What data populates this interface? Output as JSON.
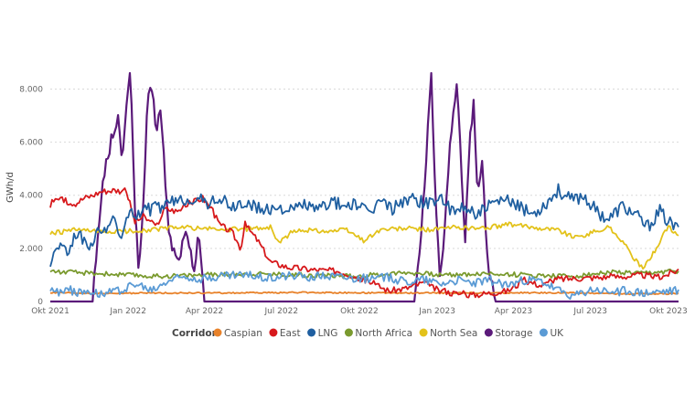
{
  "chart_data": {
    "type": "line",
    "title": "",
    "xlabel": "",
    "ylabel": "GWh/d",
    "ylim": [
      0,
      8600
    ],
    "yticks": [
      0,
      2000,
      4000,
      6000,
      8000
    ],
    "ytick_labels": [
      "0",
      "2.000",
      "4.000",
      "6.000",
      "8.000"
    ],
    "x_range_days": [
      0,
      742
    ],
    "xticks": [
      0,
      92,
      182,
      273,
      365,
      457,
      547,
      638,
      730
    ],
    "xtick_labels": [
      "Okt 2021",
      "Jan 2022",
      "Apr 2022",
      "Jul 2022",
      "Okt 2022",
      "Jan 2023",
      "Apr 2023",
      "Jul 2023",
      "Okt 2023"
    ],
    "grid": true,
    "legend_title": "Corridor",
    "legend_position": "bottom",
    "series": [
      {
        "name": "Caspian",
        "color": "#E8822A",
        "points": [
          [
            0,
            330
          ],
          [
            60,
            300
          ],
          [
            120,
            320
          ],
          [
            200,
            320
          ],
          [
            300,
            340
          ],
          [
            400,
            320
          ],
          [
            500,
            320
          ],
          [
            600,
            330
          ],
          [
            700,
            280
          ],
          [
            742,
            300
          ]
        ]
      },
      {
        "name": "East",
        "color": "#D7191C",
        "points": [
          [
            0,
            3600
          ],
          [
            5,
            3900
          ],
          [
            15,
            3800
          ],
          [
            30,
            3700
          ],
          [
            40,
            3900
          ],
          [
            50,
            4000
          ],
          [
            60,
            4150
          ],
          [
            75,
            4200
          ],
          [
            90,
            4150
          ],
          [
            100,
            3000
          ],
          [
            110,
            3200
          ],
          [
            125,
            2800
          ],
          [
            135,
            3500
          ],
          [
            150,
            3400
          ],
          [
            165,
            3700
          ],
          [
            180,
            3900
          ],
          [
            190,
            3500
          ],
          [
            200,
            2900
          ],
          [
            215,
            2600
          ],
          [
            225,
            2000
          ],
          [
            230,
            2900
          ],
          [
            245,
            2300
          ],
          [
            260,
            1500
          ],
          [
            270,
            1400
          ],
          [
            280,
            1300
          ],
          [
            295,
            1250
          ],
          [
            310,
            1200
          ],
          [
            340,
            1150
          ],
          [
            360,
            950
          ],
          [
            380,
            700
          ],
          [
            400,
            400
          ],
          [
            420,
            500
          ],
          [
            440,
            700
          ],
          [
            460,
            400
          ],
          [
            480,
            300
          ],
          [
            500,
            250
          ],
          [
            540,
            400
          ],
          [
            560,
            800
          ],
          [
            580,
            600
          ],
          [
            600,
            850
          ],
          [
            640,
            900
          ],
          [
            680,
            950
          ],
          [
            700,
            1000
          ],
          [
            720,
            900
          ],
          [
            742,
            1200
          ]
        ]
      },
      {
        "name": "LNG",
        "color": "#1F5FA0",
        "points": [
          [
            0,
            1500
          ],
          [
            10,
            2200
          ],
          [
            20,
            1800
          ],
          [
            30,
            2600
          ],
          [
            45,
            2100
          ],
          [
            60,
            2700
          ],
          [
            75,
            3000
          ],
          [
            85,
            2500
          ],
          [
            92,
            3200
          ],
          [
            105,
            3400
          ],
          [
            120,
            3500
          ],
          [
            135,
            3600
          ],
          [
            150,
            3800
          ],
          [
            170,
            3900
          ],
          [
            185,
            3700
          ],
          [
            200,
            3900
          ],
          [
            215,
            3500
          ],
          [
            225,
            3700
          ],
          [
            240,
            3600
          ],
          [
            255,
            3400
          ],
          [
            270,
            3600
          ],
          [
            285,
            3400
          ],
          [
            300,
            3700
          ],
          [
            315,
            3400
          ],
          [
            330,
            3800
          ],
          [
            345,
            3600
          ],
          [
            360,
            3700
          ],
          [
            375,
            3300
          ],
          [
            390,
            3800
          ],
          [
            405,
            3500
          ],
          [
            420,
            3900
          ],
          [
            435,
            3800
          ],
          [
            450,
            3700
          ],
          [
            460,
            4000
          ],
          [
            475,
            3300
          ],
          [
            490,
            3600
          ],
          [
            505,
            3300
          ],
          [
            520,
            3600
          ],
          [
            540,
            3800
          ],
          [
            555,
            3500
          ],
          [
            570,
            3300
          ],
          [
            585,
            3700
          ],
          [
            600,
            4200
          ],
          [
            615,
            3800
          ],
          [
            630,
            4000
          ],
          [
            645,
            3400
          ],
          [
            660,
            3100
          ],
          [
            675,
            3600
          ],
          [
            690,
            3300
          ],
          [
            705,
            2800
          ],
          [
            720,
            3400
          ],
          [
            730,
            3000
          ],
          [
            742,
            2700
          ]
        ]
      },
      {
        "name": "North Africa",
        "color": "#7A9A2E",
        "points": [
          [
            0,
            1150
          ],
          [
            20,
            1100
          ],
          [
            60,
            1050
          ],
          [
            120,
            950
          ],
          [
            180,
            1000
          ],
          [
            240,
            1050
          ],
          [
            300,
            1000
          ],
          [
            360,
            950
          ],
          [
            420,
            1100
          ],
          [
            460,
            1000
          ],
          [
            520,
            1050
          ],
          [
            560,
            1000
          ],
          [
            620,
            950
          ],
          [
            660,
            1100
          ],
          [
            700,
            1050
          ],
          [
            720,
            1100
          ],
          [
            742,
            1150
          ]
        ]
      },
      {
        "name": "North Sea",
        "color": "#E3C21A",
        "points": [
          [
            0,
            2550
          ],
          [
            30,
            2700
          ],
          [
            60,
            2600
          ],
          [
            90,
            2650
          ],
          [
            120,
            2700
          ],
          [
            150,
            2800
          ],
          [
            180,
            2750
          ],
          [
            210,
            2700
          ],
          [
            240,
            2750
          ],
          [
            260,
            2800
          ],
          [
            270,
            2200
          ],
          [
            285,
            2600
          ],
          [
            300,
            2700
          ],
          [
            330,
            2650
          ],
          [
            350,
            2700
          ],
          [
            370,
            2300
          ],
          [
            390,
            2700
          ],
          [
            420,
            2750
          ],
          [
            450,
            2700
          ],
          [
            480,
            2800
          ],
          [
            510,
            2750
          ],
          [
            540,
            2900
          ],
          [
            570,
            2800
          ],
          [
            600,
            2700
          ],
          [
            620,
            2400
          ],
          [
            640,
            2600
          ],
          [
            660,
            2800
          ],
          [
            675,
            2300
          ],
          [
            690,
            1600
          ],
          [
            700,
            1200
          ],
          [
            710,
            1700
          ],
          [
            722,
            2400
          ],
          [
            730,
            2800
          ],
          [
            742,
            2500
          ]
        ]
      },
      {
        "name": "Storage",
        "color": "#5B1A7A",
        "points": [
          [
            0,
            0
          ],
          [
            50,
            0
          ],
          [
            55,
            2000
          ],
          [
            62,
            4500
          ],
          [
            68,
            5500
          ],
          [
            75,
            6500
          ],
          [
            80,
            7000
          ],
          [
            85,
            5000
          ],
          [
            90,
            7500
          ],
          [
            95,
            8600
          ],
          [
            100,
            3500
          ],
          [
            105,
            1000
          ],
          [
            110,
            3800
          ],
          [
            115,
            7500
          ],
          [
            120,
            8000
          ],
          [
            125,
            6500
          ],
          [
            130,
            7200
          ],
          [
            135,
            5000
          ],
          [
            140,
            2500
          ],
          [
            150,
            1500
          ],
          [
            160,
            2500
          ],
          [
            170,
            1200
          ],
          [
            175,
            2800
          ],
          [
            182,
            0
          ],
          [
            200,
            0
          ],
          [
            430,
            0
          ],
          [
            435,
            1500
          ],
          [
            440,
            3500
          ],
          [
            445,
            6000
          ],
          [
            450,
            8400
          ],
          [
            455,
            4000
          ],
          [
            460,
            900
          ],
          [
            465,
            2500
          ],
          [
            470,
            5000
          ],
          [
            475,
            7000
          ],
          [
            480,
            8000
          ],
          [
            485,
            5500
          ],
          [
            490,
            2000
          ],
          [
            495,
            6000
          ],
          [
            500,
            7400
          ],
          [
            505,
            4000
          ],
          [
            510,
            5500
          ],
          [
            515,
            2000
          ],
          [
            520,
            900
          ],
          [
            525,
            0
          ],
          [
            742,
            0
          ]
        ]
      },
      {
        "name": "UK",
        "color": "#5B9BD5",
        "points": [
          [
            0,
            500
          ],
          [
            10,
            300
          ],
          [
            20,
            600
          ],
          [
            30,
            250
          ],
          [
            45,
            450
          ],
          [
            60,
            300
          ],
          [
            80,
            400
          ],
          [
            100,
            650
          ],
          [
            120,
            400
          ],
          [
            140,
            800
          ],
          [
            160,
            950
          ],
          [
            180,
            850
          ],
          [
            200,
            950
          ],
          [
            220,
            1000
          ],
          [
            240,
            950
          ],
          [
            260,
            900
          ],
          [
            280,
            1000
          ],
          [
            300,
            900
          ],
          [
            320,
            1000
          ],
          [
            340,
            950
          ],
          [
            360,
            900
          ],
          [
            380,
            850
          ],
          [
            400,
            900
          ],
          [
            420,
            750
          ],
          [
            440,
            850
          ],
          [
            460,
            700
          ],
          [
            480,
            800
          ],
          [
            500,
            700
          ],
          [
            520,
            800
          ],
          [
            540,
            600
          ],
          [
            560,
            800
          ],
          [
            580,
            750
          ],
          [
            600,
            400
          ],
          [
            620,
            200
          ],
          [
            640,
            450
          ],
          [
            660,
            350
          ],
          [
            680,
            400
          ],
          [
            700,
            300
          ],
          [
            720,
            350
          ],
          [
            742,
            400
          ]
        ]
      }
    ]
  }
}
